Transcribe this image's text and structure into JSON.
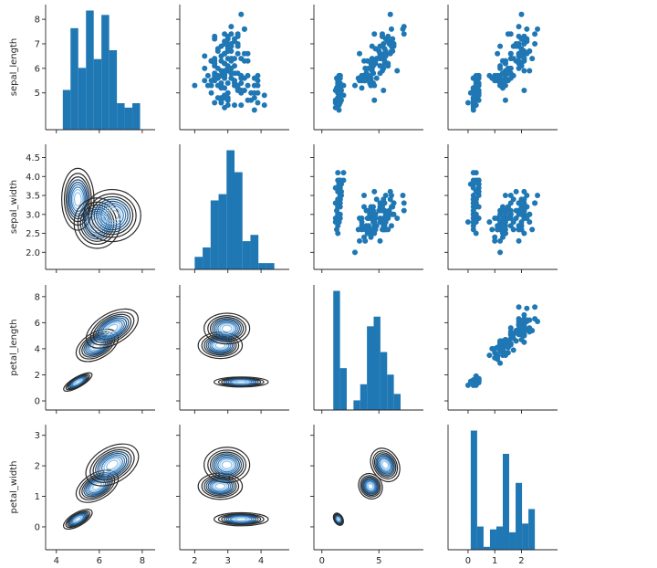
{
  "chart_data": {
    "type": "pairgrid",
    "variables": [
      "sepal_length",
      "sepal_width",
      "petal_length",
      "petal_width"
    ],
    "ranges": {
      "sepal_length": [
        3.5,
        8.6
      ],
      "sepal_width": [
        1.55,
        4.85
      ],
      "petal_length": [
        -0.7,
        8.9
      ],
      "petal_width": [
        -0.75,
        3.35
      ]
    },
    "ticks": {
      "sepal_length": [
        4,
        6,
        8
      ],
      "sepal_width": [
        2,
        3,
        4
      ],
      "petal_length": [
        0,
        5
      ],
      "petal_width": [
        0,
        1,
        2
      ]
    },
    "row_ticks": {
      "sepal_length": [
        5,
        6,
        7,
        8
      ],
      "sepal_width": [
        2.0,
        2.5,
        3.0,
        3.5,
        4.0,
        4.5
      ],
      "petal_length": [
        0,
        2,
        4,
        6,
        8
      ],
      "petal_width": [
        0,
        1,
        2,
        3
      ]
    },
    "col_ticks": {
      "sepal_length": [
        4,
        6,
        8
      ],
      "sepal_width": [
        2,
        3,
        4
      ],
      "petal_length": [
        0,
        5
      ],
      "petal_width": [
        0,
        1,
        2
      ]
    },
    "histograms": {
      "sepal_length": {
        "edges": [
          4.3,
          4.66,
          5.02,
          5.38,
          5.74,
          6.1,
          6.46,
          6.82,
          7.18,
          7.54,
          7.9
        ],
        "counts": [
          9,
          23,
          14,
          27,
          16,
          26,
          18,
          6,
          5,
          6
        ]
      },
      "sepal_width": {
        "edges": [
          2.0,
          2.24,
          2.48,
          2.72,
          2.96,
          3.2,
          3.44,
          3.68,
          3.92,
          4.16,
          4.4
        ],
        "counts": [
          4,
          7,
          22,
          24,
          38,
          31,
          9,
          11,
          2,
          2
        ]
      },
      "petal_length": {
        "edges": [
          1.0,
          1.59,
          2.18,
          2.77,
          3.36,
          3.95,
          4.54,
          5.13,
          5.72,
          6.31,
          6.9
        ],
        "counts": [
          37,
          13,
          0,
          3,
          8,
          26,
          29,
          18,
          11,
          5
        ]
      },
      "petal_width": {
        "edges": [
          0.1,
          0.34,
          0.58,
          0.82,
          1.06,
          1.3,
          1.54,
          1.78,
          2.02,
          2.26,
          2.5
        ],
        "counts": [
          41,
          8,
          1,
          7,
          8,
          33,
          6,
          23,
          9,
          14
        ]
      }
    },
    "clusters": [
      {
        "sepal_length": 5.0,
        "sepal_width": 3.4,
        "petal_length": 1.45,
        "petal_width": 0.25,
        "sd": {
          "sepal_length": 0.35,
          "sepal_width": 0.38,
          "petal_length": 0.18,
          "petal_width": 0.1
        },
        "n": 50
      },
      {
        "sepal_length": 5.9,
        "sepal_width": 2.77,
        "petal_length": 4.26,
        "petal_width": 1.33,
        "sd": {
          "sepal_length": 0.5,
          "sepal_width": 0.31,
          "petal_length": 0.47,
          "petal_width": 0.2
        },
        "n": 50
      },
      {
        "sepal_length": 6.6,
        "sepal_width": 2.97,
        "petal_length": 5.55,
        "petal_width": 2.03,
        "sd": {
          "sepal_length": 0.62,
          "sepal_width": 0.32,
          "petal_length": 0.55,
          "petal_width": 0.27
        },
        "n": 50
      }
    ],
    "scatter_color": "#1f77b4",
    "hist_color": "#1f77b4",
    "kde_colormap": [
      "#2b2b2b",
      "#1f4e79",
      "#3a7bb8",
      "#8ec1e8"
    ],
    "upper": "scatter",
    "diag": "hist",
    "lower": "kde"
  }
}
